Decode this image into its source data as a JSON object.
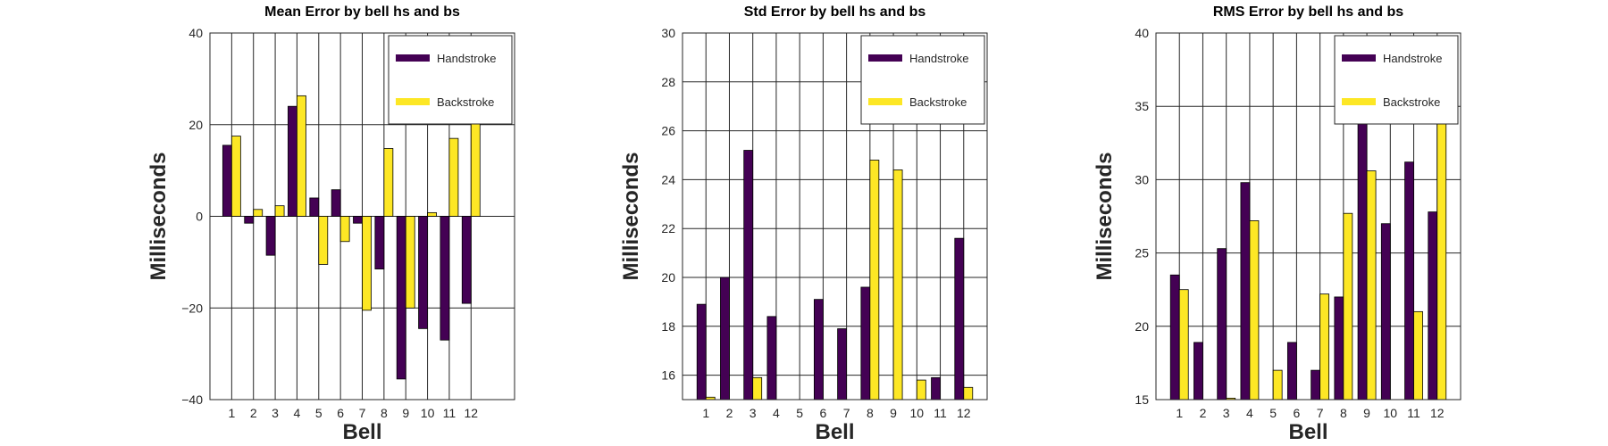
{
  "colors": {
    "hs": "#440154",
    "bs": "#FDE725",
    "grid": "#262626",
    "background": "#ffffff"
  },
  "chart_data": [
    {
      "type": "bar",
      "title": "Mean Error by bell hs and bs",
      "xlabel": "Bell",
      "ylabel": "Milliseconds",
      "categories": [
        "1",
        "2",
        "3",
        "4",
        "5",
        "6",
        "7",
        "8",
        "9",
        "10",
        "11",
        "12"
      ],
      "xlim": [
        0,
        14
      ],
      "ylim": [
        -40,
        40
      ],
      "yticks": [
        -40,
        -20,
        0,
        20,
        40
      ],
      "ytick_labels": [
        "−40",
        "−20",
        "0",
        "20",
        "40"
      ],
      "grid": true,
      "legend_position": "top-right",
      "series": [
        {
          "name": "Handstroke",
          "values": [
            15.5,
            -1.5,
            -8.5,
            24.0,
            4.0,
            5.8,
            -1.5,
            -11.5,
            -35.5,
            -24.5,
            -27.0,
            -19.0
          ]
        },
        {
          "name": "Backstroke",
          "values": [
            17.5,
            1.5,
            2.3,
            26.3,
            -10.5,
            -5.5,
            -20.5,
            14.8,
            -20.0,
            0.8,
            17.0,
            32.0
          ]
        }
      ]
    },
    {
      "type": "bar",
      "title": "Std Error by bell hs and bs",
      "xlabel": "Bell",
      "ylabel": "Milliseconds",
      "categories": [
        "1",
        "2",
        "3",
        "4",
        "5",
        "6",
        "7",
        "8",
        "9",
        "10",
        "11",
        "12"
      ],
      "xlim": [
        0,
        13
      ],
      "ylim": [
        15,
        30
      ],
      "yticks": [
        16,
        18,
        20,
        22,
        24,
        26,
        28,
        30
      ],
      "ytick_labels": [
        "16",
        "18",
        "20",
        "22",
        "24",
        "26",
        "28",
        "30"
      ],
      "grid": true,
      "legend_position": "top-right",
      "series": [
        {
          "name": "Handstroke",
          "values": [
            18.9,
            20.0,
            25.2,
            18.4,
            null,
            19.1,
            17.9,
            19.6,
            null,
            null,
            15.9,
            21.6
          ]
        },
        {
          "name": "Backstroke",
          "values": [
            15.1,
            null,
            15.9,
            null,
            null,
            null,
            null,
            24.8,
            24.4,
            15.8,
            null,
            15.5
          ]
        }
      ]
    },
    {
      "type": "bar",
      "title": "RMS Error by bell hs and bs",
      "xlabel": "Bell",
      "ylabel": "Milliseconds",
      "categories": [
        "1",
        "2",
        "3",
        "4",
        "5",
        "6",
        "7",
        "8",
        "9",
        "10",
        "11",
        "12"
      ],
      "xlim": [
        0,
        13
      ],
      "ylim": [
        15,
        40
      ],
      "yticks": [
        15,
        20,
        25,
        30,
        35,
        40
      ],
      "ytick_labels": [
        "15",
        "20",
        "25",
        "30",
        "35",
        "40"
      ],
      "grid": true,
      "legend_position": "top-right",
      "series": [
        {
          "name": "Handstroke",
          "values": [
            23.5,
            18.9,
            25.3,
            29.8,
            null,
            18.9,
            17.0,
            22.0,
            37.2,
            27.0,
            31.2,
            27.8
          ]
        },
        {
          "name": "Backstroke",
          "values": [
            22.5,
            null,
            15.1,
            27.2,
            17.0,
            null,
            22.2,
            27.7,
            30.6,
            null,
            21.0,
            35.2
          ]
        }
      ]
    }
  ]
}
